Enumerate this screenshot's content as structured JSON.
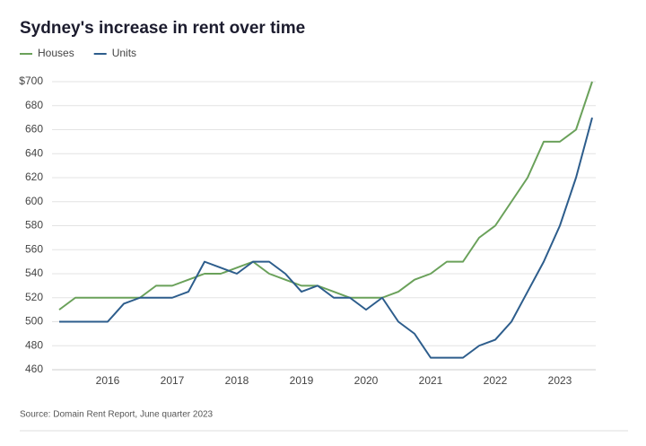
{
  "chart_data": {
    "type": "line",
    "title": "Sydney's increase in rent over time",
    "source": "Source: Domain Rent Report, June quarter 2023",
    "categories": [
      null,
      null,
      null,
      "2016",
      null,
      null,
      null,
      "2017",
      null,
      null,
      null,
      "2018",
      null,
      null,
      null,
      "2019",
      null,
      null,
      null,
      "2020",
      null,
      null,
      null,
      "2021",
      null,
      null,
      null,
      "2022",
      null,
      null,
      null,
      "2023",
      null,
      null
    ],
    "series": [
      {
        "name": "Houses",
        "color": "#6aa15a",
        "values": [
          510,
          520,
          520,
          520,
          520,
          520,
          530,
          530,
          535,
          540,
          540,
          545,
          550,
          540,
          535,
          530,
          530,
          525,
          520,
          520,
          520,
          525,
          535,
          540,
          550,
          550,
          570,
          580,
          600,
          620,
          650,
          650,
          660,
          700
        ]
      },
      {
        "name": "Units",
        "color": "#2d5d8c",
        "values": [
          500,
          500,
          500,
          500,
          515,
          520,
          520,
          520,
          525,
          550,
          545,
          540,
          550,
          550,
          540,
          525,
          530,
          520,
          520,
          510,
          520,
          500,
          490,
          470,
          470,
          470,
          480,
          485,
          500,
          525,
          550,
          580,
          620,
          670
        ]
      }
    ],
    "ylim": [
      460,
      700
    ],
    "yticks": [
      460,
      480,
      500,
      520,
      540,
      560,
      580,
      600,
      620,
      640,
      660,
      680,
      {
        "value": 700,
        "label": "$700"
      }
    ],
    "grid": true
  }
}
